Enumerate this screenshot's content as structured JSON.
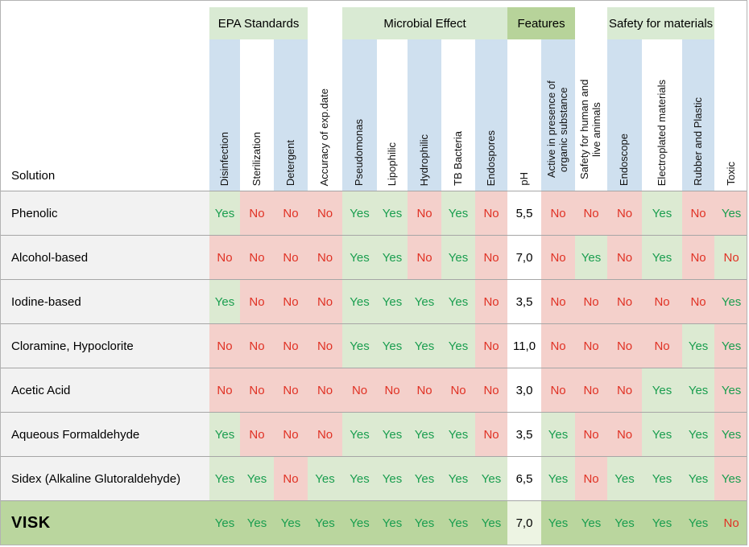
{
  "palette": {
    "yes_text": "#1a9e4f",
    "no_text": "#e03124",
    "ph_text": "#000000",
    "cell_green": "#dcead2",
    "cell_pink": "#f4d0cb",
    "header_blue": "#cfe0ef",
    "group_green": "#d9ead3",
    "features_green": "#b7d39a",
    "highlight_row_green": "#bad69e",
    "highlight_ph_green": "#edf4e3",
    "row_label_bg": "#f2f2f2"
  },
  "chart_data": {
    "type": "table",
    "corner_label": "Solution",
    "groups": [
      {
        "label": "EPA Standards",
        "span": 3,
        "tone": "light"
      },
      {
        "label": "",
        "span": 1,
        "tone": "none"
      },
      {
        "label": "Microbial Effect",
        "span": 5,
        "tone": "light"
      },
      {
        "label": "Features",
        "span": 2,
        "tone": "dark"
      },
      {
        "label": "",
        "span": 1,
        "tone": "none"
      },
      {
        "label": "Safety for materials",
        "span": 3,
        "tone": "light"
      },
      {
        "label": "",
        "span": 1,
        "tone": "none"
      }
    ],
    "columns": [
      {
        "label": "Disinfection",
        "shaded": true,
        "wrap": false
      },
      {
        "label": "Sterilization",
        "shaded": false,
        "wrap": false
      },
      {
        "label": "Detergent",
        "shaded": true,
        "wrap": false
      },
      {
        "label": "Accuracy of exp.date",
        "shaded": false,
        "wrap": false
      },
      {
        "label": "Pseudomonas",
        "shaded": true,
        "wrap": false
      },
      {
        "label": "Lipophilic",
        "shaded": false,
        "wrap": false
      },
      {
        "label": "Hydrophilic",
        "shaded": true,
        "wrap": false
      },
      {
        "label": "TB Bacteria",
        "shaded": false,
        "wrap": false
      },
      {
        "label": "Endospores",
        "shaded": true,
        "wrap": false
      },
      {
        "label": "pH",
        "shaded": false,
        "wrap": false
      },
      {
        "label": "Active in presence of organic substance",
        "shaded": true,
        "wrap": true
      },
      {
        "label": "Safety for human and live animals",
        "shaded": false,
        "wrap": true
      },
      {
        "label": "Endoscope",
        "shaded": true,
        "wrap": false
      },
      {
        "label": "Electroplated materials",
        "shaded": false,
        "wrap": true
      },
      {
        "label": "Rubber and Plastic",
        "shaded": true,
        "wrap": false
      },
      {
        "label": "Toxic",
        "shaded": false,
        "wrap": false
      }
    ],
    "ph_column_index": 9,
    "inverted_column_index": 15,
    "highlight_row": "VISK",
    "rows": [
      {
        "name": "Phenolic",
        "values": [
          "Yes",
          "No",
          "No",
          "No",
          "Yes",
          "Yes",
          "No",
          "Yes",
          "No",
          "5,5",
          "No",
          "No",
          "No",
          "Yes",
          "No",
          "Yes"
        ]
      },
      {
        "name": "Alcohol-based",
        "values": [
          "No",
          "No",
          "No",
          "No",
          "Yes",
          "Yes",
          "No",
          "Yes",
          "No",
          "7,0",
          "No",
          "Yes",
          "No",
          "Yes",
          "No",
          "No"
        ]
      },
      {
        "name": "Iodine-based",
        "values": [
          "Yes",
          "No",
          "No",
          "No",
          "Yes",
          "Yes",
          "Yes",
          "Yes",
          "No",
          "3,5",
          "No",
          "No",
          "No",
          "No",
          "No",
          "Yes"
        ]
      },
      {
        "name": "Cloramine, Hypoclorite",
        "values": [
          "No",
          "No",
          "No",
          "No",
          "Yes",
          "Yes",
          "Yes",
          "Yes",
          "No",
          "11,0",
          "No",
          "No",
          "No",
          "No",
          "Yes",
          "Yes"
        ]
      },
      {
        "name": "Acetic Acid",
        "values": [
          "No",
          "No",
          "No",
          "No",
          "No",
          "No",
          "No",
          "No",
          "No",
          "3,0",
          "No",
          "No",
          "No",
          "Yes",
          "Yes",
          "Yes"
        ]
      },
      {
        "name": "Aqueous Formaldehyde",
        "values": [
          "Yes",
          "No",
          "No",
          "No",
          "Yes",
          "Yes",
          "Yes",
          "Yes",
          "No",
          "3,5",
          "Yes",
          "No",
          "No",
          "Yes",
          "Yes",
          "Yes"
        ]
      },
      {
        "name": "Sidex (Alkaline Glutoraldehyde)",
        "values": [
          "Yes",
          "Yes",
          "No",
          "Yes",
          "Yes",
          "Yes",
          "Yes",
          "Yes",
          "Yes",
          "6,5",
          "Yes",
          "No",
          "Yes",
          "Yes",
          "Yes",
          "Yes"
        ]
      },
      {
        "name": "VISK",
        "values": [
          "Yes",
          "Yes",
          "Yes",
          "Yes",
          "Yes",
          "Yes",
          "Yes",
          "Yes",
          "Yes",
          "7,0",
          "Yes",
          "Yes",
          "Yes",
          "Yes",
          "Yes",
          "No"
        ]
      }
    ]
  }
}
